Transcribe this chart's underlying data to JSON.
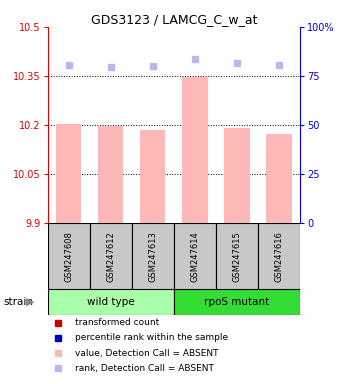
{
  "title": "GDS3123 / LAMCG_C_w_at",
  "samples": [
    "GSM247608",
    "GSM247612",
    "GSM247613",
    "GSM247614",
    "GSM247615",
    "GSM247616"
  ],
  "bar_values": [
    10.205,
    10.197,
    10.185,
    10.347,
    10.192,
    10.173
  ],
  "rank_values": [
    80.5,
    79.5,
    80.0,
    83.5,
    81.5,
    80.5
  ],
  "ylim_left": [
    9.9,
    10.5
  ],
  "ylim_right": [
    0,
    100
  ],
  "yticks_left": [
    9.9,
    10.05,
    10.2,
    10.35,
    10.5
  ],
  "yticks_right": [
    0,
    25,
    50,
    75,
    100
  ],
  "ytick_labels_left": [
    "9.9",
    "10.05",
    "10.2",
    "10.35",
    "10.5"
  ],
  "ytick_labels_right": [
    "0",
    "25",
    "50",
    "75",
    "100%"
  ],
  "hlines": [
    10.05,
    10.2,
    10.35
  ],
  "groups": [
    {
      "label": "wild type",
      "indices": [
        0,
        1,
        2
      ],
      "color": "#aaffaa"
    },
    {
      "label": "rpoS mutant",
      "indices": [
        3,
        4,
        5
      ],
      "color": "#33dd33"
    }
  ],
  "strain_label": "strain",
  "bar_color_absent": "#ffb8b8",
  "rank_color_absent": "#b8b8ee",
  "sample_box_color": "#c8c8c8",
  "left_axis_color": "#dd0000",
  "right_axis_color": "#0000dd",
  "legend_items": [
    {
      "label": "transformed count",
      "color": "#cc0000"
    },
    {
      "label": "percentile rank within the sample",
      "color": "#0000cc"
    },
    {
      "label": "value, Detection Call = ABSENT",
      "color": "#ffb8b8"
    },
    {
      "label": "rank, Detection Call = ABSENT",
      "color": "#b8b8ee"
    }
  ]
}
